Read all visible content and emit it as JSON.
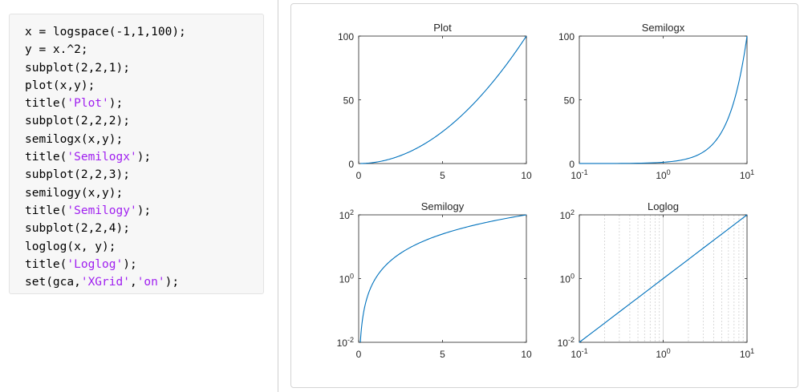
{
  "code_lines": [
    [
      {
        "t": "x = logspace(-1,1,100);"
      }
    ],
    [
      {
        "t": "y = x.^2;"
      }
    ],
    [
      {
        "t": "subplot(2,2,1);"
      }
    ],
    [
      {
        "t": "plot(x,y);"
      }
    ],
    [
      {
        "t": "title("
      },
      {
        "t": "'Plot'",
        "s": true
      },
      {
        "t": ");"
      }
    ],
    [
      {
        "t": "subplot(2,2,2);"
      }
    ],
    [
      {
        "t": "semilogx(x,y);"
      }
    ],
    [
      {
        "t": "title("
      },
      {
        "t": "'Semilogx'",
        "s": true
      },
      {
        "t": ");"
      }
    ],
    [
      {
        "t": "subplot(2,2,3);"
      }
    ],
    [
      {
        "t": "semilogy(x,y);"
      }
    ],
    [
      {
        "t": "title("
      },
      {
        "t": "'Semilogy'",
        "s": true
      },
      {
        "t": ");"
      }
    ],
    [
      {
        "t": "subplot(2,2,4);"
      }
    ],
    [
      {
        "t": "loglog(x, y);"
      }
    ],
    [
      {
        "t": "title("
      },
      {
        "t": "'Loglog'",
        "s": true
      },
      {
        "t": ");"
      }
    ],
    [
      {
        "t": "set(gca,"
      },
      {
        "t": "'XGrid'",
        "s": true
      },
      {
        "t": ","
      },
      {
        "t": "'on'",
        "s": true
      },
      {
        "t": ");"
      }
    ]
  ],
  "colors": {
    "line": "#0072bd",
    "string": "#a020f0",
    "axis": "#262626",
    "grid": "#d0d0d0"
  },
  "chart_data": [
    {
      "type": "line",
      "title": "Plot",
      "x_scale": "linear",
      "y_scale": "linear",
      "xlim": [
        0,
        10
      ],
      "ylim": [
        0,
        100
      ],
      "grid": "off",
      "x_ticks": [
        {
          "v": 0,
          "label": "0"
        },
        {
          "v": 5,
          "label": "5"
        },
        {
          "v": 10,
          "label": "10"
        }
      ],
      "y_ticks": [
        {
          "v": 0,
          "label": "0"
        },
        {
          "v": 50,
          "label": "50"
        },
        {
          "v": 100,
          "label": "100"
        }
      ],
      "series": [
        {
          "x": [
            0.1,
            0.5,
            1,
            1.5,
            2,
            2.5,
            3,
            3.5,
            4,
            4.5,
            5,
            5.5,
            6,
            6.5,
            7,
            7.5,
            8,
            8.5,
            9,
            9.5,
            10
          ],
          "y": [
            0.01,
            0.25,
            1,
            2.25,
            4,
            6.25,
            9,
            12.25,
            16,
            20.25,
            25,
            30.25,
            36,
            42.25,
            49,
            56.25,
            64,
            72.25,
            81,
            90.25,
            100
          ]
        }
      ]
    },
    {
      "type": "line",
      "title": "Semilogx",
      "x_scale": "log",
      "y_scale": "linear",
      "xlim": [
        0.1,
        10
      ],
      "ylim": [
        0,
        100
      ],
      "grid": "off",
      "x_ticks": [
        {
          "v": 0.1,
          "base": "10",
          "exp": "-1"
        },
        {
          "v": 1,
          "base": "10",
          "exp": "0"
        },
        {
          "v": 10,
          "base": "10",
          "exp": "1"
        }
      ],
      "y_ticks": [
        {
          "v": 0,
          "label": "0"
        },
        {
          "v": 50,
          "label": "50"
        },
        {
          "v": 100,
          "label": "100"
        }
      ],
      "series": [
        {
          "x": [
            0.1,
            0.2,
            0.5,
            1,
            1.5,
            2,
            2.5,
            3,
            3.5,
            4,
            4.5,
            5,
            5.5,
            6,
            6.5,
            7,
            7.5,
            8,
            8.5,
            9,
            9.5,
            10
          ],
          "y": [
            0.01,
            0.04,
            0.25,
            1,
            2.25,
            4,
            6.25,
            9,
            12.25,
            16,
            20.25,
            25,
            30.25,
            36,
            42.25,
            49,
            56.25,
            64,
            72.25,
            81,
            90.25,
            100
          ]
        }
      ]
    },
    {
      "type": "line",
      "title": "Semilogy",
      "x_scale": "linear",
      "y_scale": "log",
      "xlim": [
        0,
        10
      ],
      "ylim": [
        0.01,
        100
      ],
      "grid": "off",
      "x_ticks": [
        {
          "v": 0,
          "label": "0"
        },
        {
          "v": 5,
          "label": "5"
        },
        {
          "v": 10,
          "label": "10"
        }
      ],
      "y_ticks": [
        {
          "v": 0.01,
          "base": "10",
          "exp": "-2"
        },
        {
          "v": 1,
          "base": "10",
          "exp": "0"
        },
        {
          "v": 100,
          "base": "10",
          "exp": "2"
        }
      ],
      "series": [
        {
          "x": [
            0.1,
            0.15,
            0.2,
            0.3,
            0.4,
            0.5,
            0.7,
            1,
            1.5,
            2,
            2.5,
            3,
            4,
            5,
            6,
            7,
            8,
            9,
            10
          ],
          "y": [
            0.01,
            0.0225,
            0.04,
            0.09,
            0.16,
            0.25,
            0.49,
            1,
            2.25,
            4,
            6.25,
            9,
            16,
            25,
            36,
            49,
            64,
            81,
            100
          ]
        }
      ]
    },
    {
      "type": "line",
      "title": "Loglog",
      "x_scale": "log",
      "y_scale": "log",
      "xlim": [
        0.1,
        10
      ],
      "ylim": [
        0.01,
        100
      ],
      "grid": "x-on",
      "x_ticks": [
        {
          "v": 0.1,
          "base": "10",
          "exp": "-1"
        },
        {
          "v": 1,
          "base": "10",
          "exp": "0"
        },
        {
          "v": 10,
          "base": "10",
          "exp": "1"
        }
      ],
      "y_ticks": [
        {
          "v": 0.01,
          "base": "10",
          "exp": "-2"
        },
        {
          "v": 1,
          "base": "10",
          "exp": "0"
        },
        {
          "v": 100,
          "base": "10",
          "exp": "2"
        }
      ],
      "series": [
        {
          "x": [
            0.1,
            1,
            10
          ],
          "y": [
            0.01,
            1,
            100
          ]
        }
      ]
    }
  ]
}
